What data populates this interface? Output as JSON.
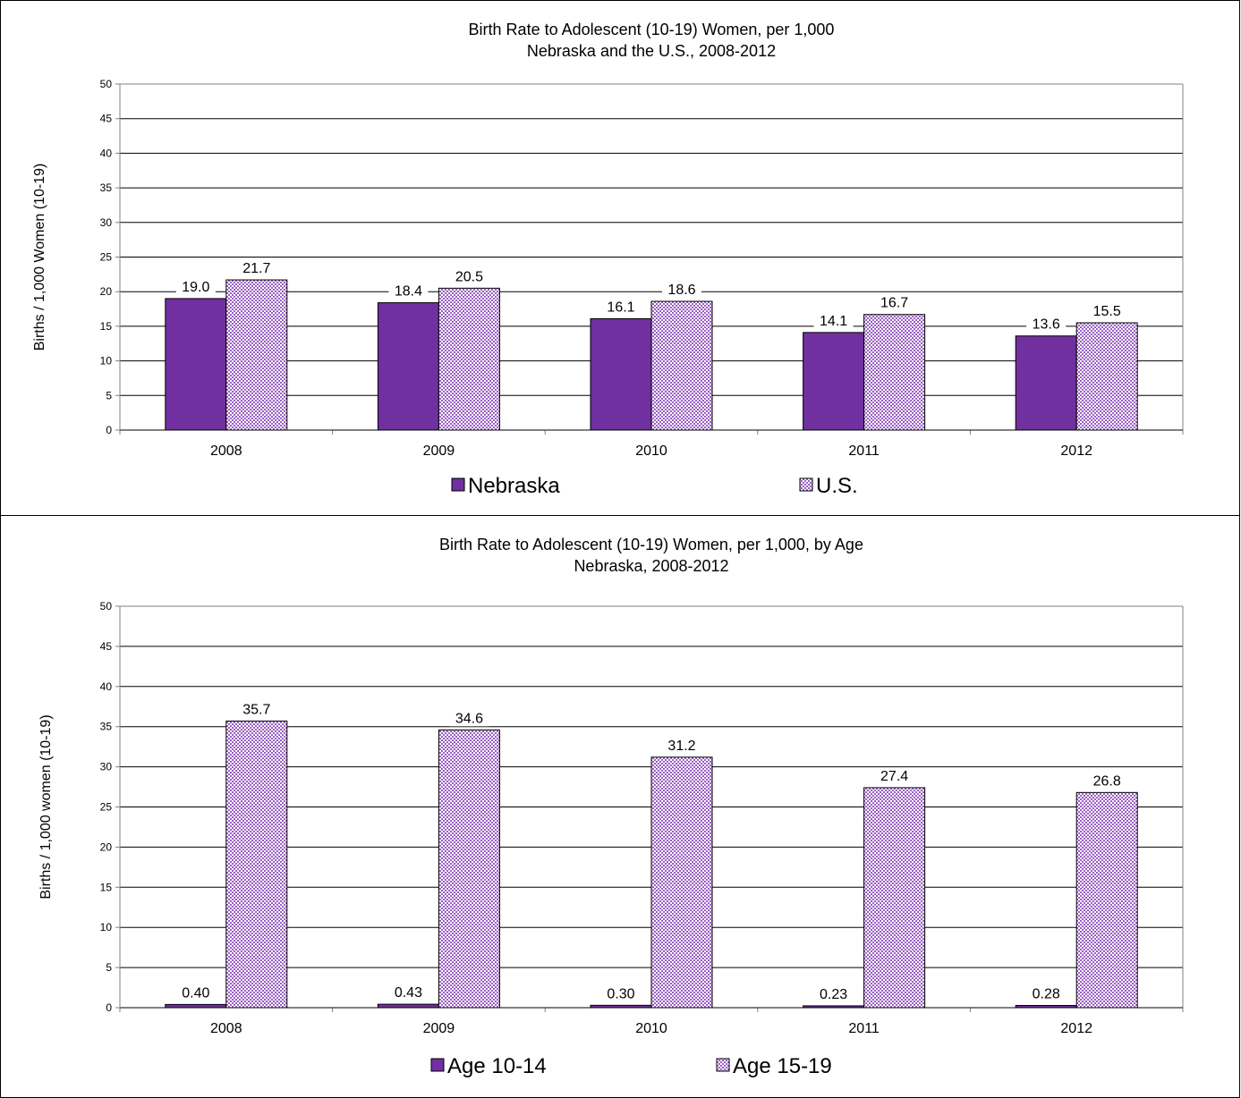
{
  "colors": {
    "purple": "#7030a0",
    "pattern_fill": "#9a5fc4",
    "gridline": "#000000",
    "axis": "#808080"
  },
  "chart_data": [
    {
      "type": "bar",
      "title": "Birth Rate to Adolescent (10-19) Women, per 1,000",
      "subtitle": "Nebraska and the U.S., 2008-2012",
      "xlabel": "",
      "ylabel": "Births / 1,000 Women (10-19)",
      "ylim": [
        0,
        50
      ],
      "ytick_step": 5,
      "categories": [
        "2008",
        "2009",
        "2010",
        "2011",
        "2012"
      ],
      "series": [
        {
          "name": "Nebraska",
          "style": "solid",
          "values": [
            19.0,
            18.4,
            16.1,
            14.1,
            13.6
          ],
          "labels": [
            "19.0",
            "18.4",
            "16.1",
            "14.1",
            "13.6"
          ]
        },
        {
          "name": "U.S.",
          "style": "pattern",
          "values": [
            21.7,
            20.5,
            18.6,
            16.7,
            15.5
          ],
          "labels": [
            "21.7",
            "20.5",
            "18.6",
            "16.7",
            "15.5"
          ]
        }
      ],
      "grid": true,
      "legend_position": "bottom"
    },
    {
      "type": "bar",
      "title": "Birth Rate to Adolescent (10-19) Women, per 1,000, by Age",
      "subtitle": "Nebraska, 2008-2012",
      "xlabel": "",
      "ylabel": "Births / 1,000 women (10-19)",
      "ylim": [
        0,
        50
      ],
      "ytick_step": 5,
      "categories": [
        "2008",
        "2009",
        "2010",
        "2011",
        "2012"
      ],
      "series": [
        {
          "name": "Age 10-14",
          "style": "solid",
          "values": [
            0.4,
            0.43,
            0.3,
            0.23,
            0.28
          ],
          "labels": [
            "0.40",
            "0.43",
            "0.30",
            "0.23",
            "0.28"
          ]
        },
        {
          "name": "Age 15-19",
          "style": "pattern",
          "values": [
            35.7,
            34.6,
            31.2,
            27.4,
            26.8
          ],
          "labels": [
            "35.7",
            "34.6",
            "31.2",
            "27.4",
            "26.8"
          ]
        }
      ],
      "grid": true,
      "legend_position": "bottom"
    }
  ]
}
